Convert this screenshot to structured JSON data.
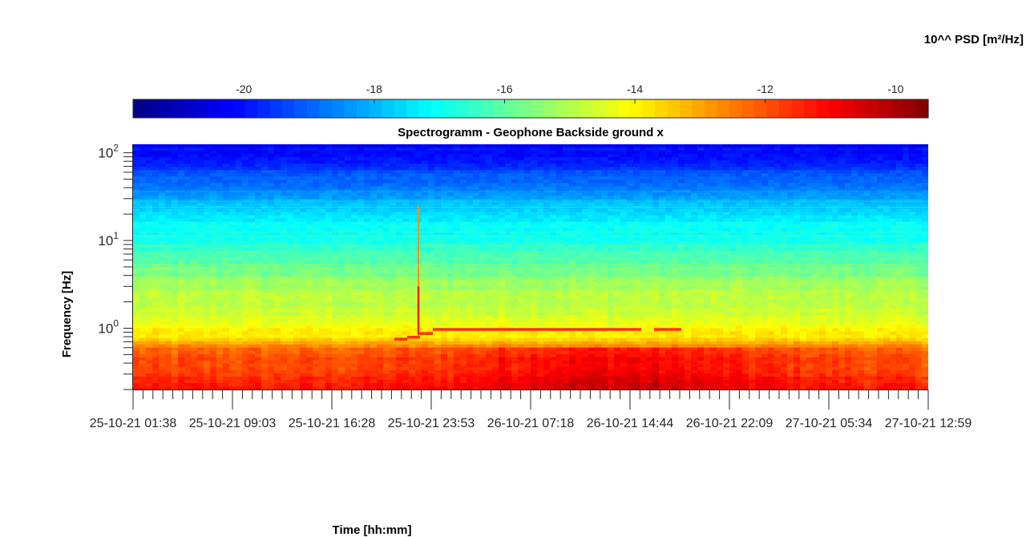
{
  "chart_data": {
    "type": "heatmap",
    "title": "Spectrogramm - Geophone Backside ground x",
    "xlabel": "Time [hh:mm]",
    "ylabel": "Frequency [Hz]",
    "yscale": "log",
    "ylim": [
      0.2,
      125
    ],
    "y_ticks": [
      {
        "value": 1,
        "base": "10",
        "exp": "0"
      },
      {
        "value": 10,
        "base": "10",
        "exp": "1"
      },
      {
        "value": 100,
        "base": "10",
        "exp": "2"
      }
    ],
    "xlim": [
      "25-10-21 01:38",
      "27-10-21 12:59"
    ],
    "x_tick_labels": [
      "25-10-21 01:38",
      "25-10-21 09:03",
      "25-10-21 16:28",
      "25-10-21 23:53",
      "26-10-21 07:18",
      "26-10-21 14:44",
      "26-10-21 22:09",
      "27-10-21 05:34",
      "27-10-21 12:59"
    ],
    "colorbar": {
      "label": "10^^ PSD [m²/Hz]",
      "location": "top",
      "colormap": "jet",
      "clim": [
        -21.7,
        -9.5
      ],
      "ticks": [
        "-20",
        "-18",
        "-16",
        "-14",
        "-12",
        "-10"
      ],
      "tick_values": [
        -20,
        -18,
        -16,
        -14,
        -12,
        -10
      ]
    },
    "psd_log10_profile": [
      {
        "freq_hz": 0.2,
        "psd": -11.4
      },
      {
        "freq_hz": 0.4,
        "psd": -11.9
      },
      {
        "freq_hz": 0.6,
        "psd": -12.4
      },
      {
        "freq_hz": 0.8,
        "psd": -13.8
      },
      {
        "freq_hz": 1.5,
        "psd": -14.6
      },
      {
        "freq_hz": 3,
        "psd": -15.2
      },
      {
        "freq_hz": 6,
        "psd": -16.1
      },
      {
        "freq_hz": 10,
        "psd": -16.8
      },
      {
        "freq_hz": 20,
        "psd": -17.4
      },
      {
        "freq_hz": 40,
        "psd": -18.6
      },
      {
        "freq_hz": 70,
        "psd": -19.6
      },
      {
        "freq_hz": 125,
        "psd": -20.2
      }
    ],
    "annotations": [
      {
        "name": "transient spike",
        "time": "25-10-21 22:40",
        "freq_range_hz": [
          0.8,
          25
        ]
      },
      {
        "name": "narrowband line",
        "time_range": [
          "25-10-21 22:00",
          "26-10-21 18:00"
        ],
        "freq_hz_range": [
          0.82,
          1.0
        ]
      }
    ],
    "grid": false
  }
}
